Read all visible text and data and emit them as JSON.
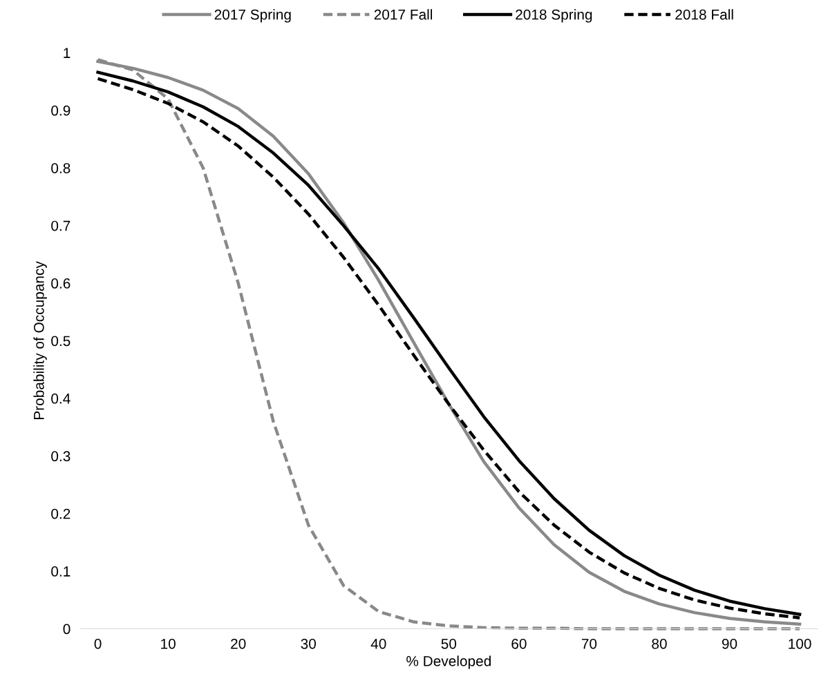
{
  "chart_data": {
    "type": "line",
    "xlabel": "% Developed",
    "ylabel": "Probability of Occupancy",
    "x": [
      0,
      5,
      10,
      15,
      20,
      25,
      30,
      35,
      40,
      45,
      50,
      55,
      60,
      65,
      70,
      75,
      80,
      85,
      90,
      95,
      100
    ],
    "series": [
      {
        "name": "2017 Spring",
        "color": "#898989",
        "line_style": "solid",
        "values": [
          0.985,
          0.973,
          0.957,
          0.935,
          0.903,
          0.855,
          0.79,
          0.705,
          0.605,
          0.497,
          0.39,
          0.29,
          0.21,
          0.146,
          0.098,
          0.065,
          0.043,
          0.028,
          0.018,
          0.012,
          0.008
        ]
      },
      {
        "name": "2017 Fall",
        "color": "#898989",
        "line_style": "dashed",
        "values": [
          0.988,
          0.97,
          0.92,
          0.8,
          0.6,
          0.36,
          0.18,
          0.075,
          0.03,
          0.012,
          0.005,
          0.002,
          0.001,
          0.001,
          0,
          0,
          0,
          0,
          0,
          0,
          0
        ]
      },
      {
        "name": "2018 Spring",
        "color": "#000000",
        "line_style": "solid",
        "values": [
          0.966,
          0.951,
          0.932,
          0.906,
          0.872,
          0.826,
          0.77,
          0.7,
          0.625,
          0.54,
          0.453,
          0.368,
          0.292,
          0.226,
          0.171,
          0.127,
          0.093,
          0.067,
          0.048,
          0.035,
          0.025
        ]
      },
      {
        "name": "2018 Fall",
        "color": "#000000",
        "line_style": "dashed",
        "values": [
          0.955,
          0.936,
          0.912,
          0.88,
          0.838,
          0.784,
          0.72,
          0.645,
          0.562,
          0.475,
          0.39,
          0.31,
          0.238,
          0.18,
          0.133,
          0.097,
          0.07,
          0.05,
          0.036,
          0.026,
          0.019
        ]
      }
    ],
    "xlim": [
      -2.5,
      102.5
    ],
    "xticks": [
      0,
      10,
      20,
      30,
      40,
      50,
      60,
      70,
      80,
      90,
      100
    ],
    "ylim": [
      0,
      1
    ],
    "yticks": [
      0,
      0.1,
      0.2,
      0.3,
      0.4,
      0.5,
      0.6,
      0.7,
      0.8,
      0.9,
      1
    ],
    "grid": false,
    "legend": "top",
    "marker": "none"
  }
}
